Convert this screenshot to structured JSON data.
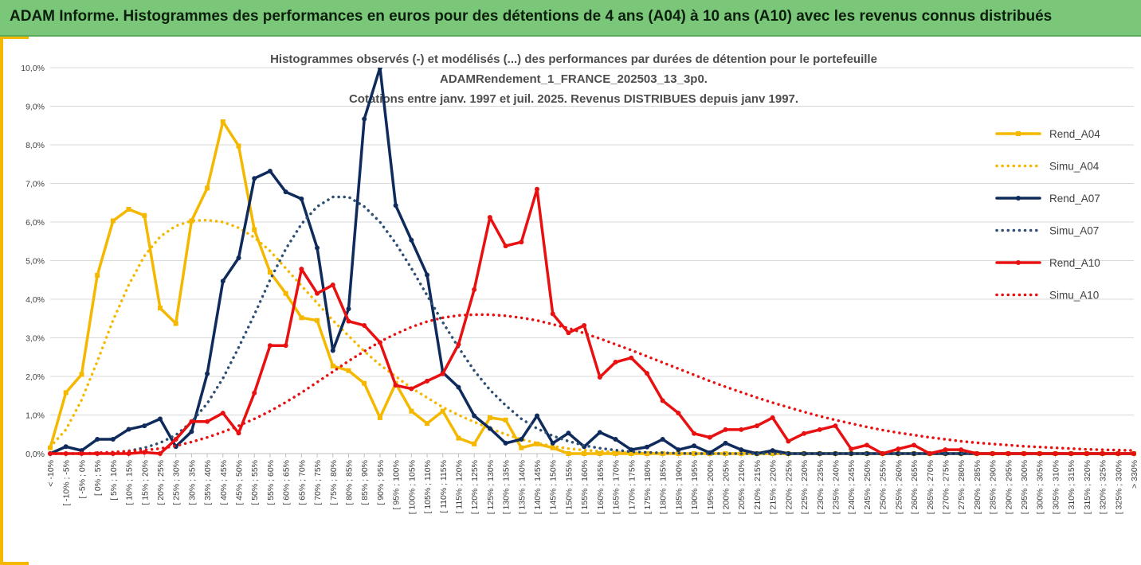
{
  "page": {
    "banner_title": "ADAM Informe. Histogrammes des performances en euros pour des détentions de 4 ans (A04) à 10 ans (A10) avec les revenus connus distribués"
  },
  "chart_data": {
    "type": "line",
    "title_lines": [
      "Histogrammes observés (-) et modélisés (...) des performances par durées de détention pour le portefeuille",
      "ADAMRendement_1_FRANCE_202503_13_3p0.",
      "Cotations entre janv. 1997 et juil. 2025. Revenus DISTRIBUES depuis janv 1997."
    ],
    "ylim": [
      0,
      10
    ],
    "yticks": [
      "0,0%",
      "1,0%",
      "2,0%",
      "3,0%",
      "4,0%",
      "5,0%",
      "6,0%",
      "7,0%",
      "8,0%",
      "9,0%",
      "10,0%"
    ],
    "grid": true,
    "legend_position": "right",
    "categories": [
      "< -10%",
      "[ -10% ; -5%",
      "[ -5% ; 0%",
      "[ 0% ; 5%",
      "[ 5% ; 10%",
      "[ 10% ; 15%",
      "[ 15% ; 20%",
      "[ 20% ; 25%",
      "[ 25% ; 30%",
      "[ 30% ; 35%",
      "[ 35% ; 40%",
      "[ 40% ; 45%",
      "[ 45% ; 50%",
      "[ 50% ; 55%",
      "[ 55% ; 60%",
      "[ 60% ; 65%",
      "[ 65% ; 70%",
      "[ 70% ; 75%",
      "[ 75% ; 80%",
      "[ 80% ; 85%",
      "[ 85% ; 90%",
      "[ 90% ; 95%",
      "[ 95% ; 100%",
      "[ 100% ; 105%",
      "[ 105% ; 110%",
      "[ 110% ; 115%",
      "[ 115% ; 120%",
      "[ 120% ; 125%",
      "[ 125% ; 130%",
      "[ 130% ; 135%",
      "[ 135% ; 140%",
      "[ 140% ; 145%",
      "[ 145% ; 150%",
      "[ 150% ; 155%",
      "[ 155% ; 160%",
      "[ 160% ; 165%",
      "[ 165% ; 170%",
      "[ 170% ; 175%",
      "[ 175% ; 180%",
      "[ 180% ; 185%",
      "[ 185% ; 190%",
      "[ 190% ; 195%",
      "[ 195% ; 200%",
      "[ 200% ; 205%",
      "[ 205% ; 210%",
      "[ 210% ; 215%",
      "[ 215% ; 220%",
      "[ 220% ; 225%",
      "[ 225% ; 230%",
      "[ 230% ; 235%",
      "[ 235% ; 240%",
      "[ 240% ; 245%",
      "[ 245% ; 250%",
      "[ 250% ; 255%",
      "[ 255% ; 260%",
      "[ 260% ; 265%",
      "[ 265% ; 270%",
      "[ 270% ; 275%",
      "[ 275% ; 280%",
      "[ 280% ; 285%",
      "[ 285% ; 290%",
      "[ 290% ; 295%",
      "[ 295% ; 300%",
      "[ 300% ; 305%",
      "[ 305% ; 310%",
      "[ 310% ; 315%",
      "[ 315% ; 320%",
      "[ 320% ; 325%",
      "[ 325% ; 330%",
      "> 330%"
    ],
    "series": [
      {
        "name": "Rend_A04",
        "color": "#f5b800",
        "style": "solid",
        "marker": "square",
        "values": [
          0.15,
          1.58,
          2.05,
          4.62,
          6.03,
          6.33,
          6.17,
          3.77,
          3.37,
          6.03,
          6.88,
          8.6,
          7.97,
          5.8,
          4.7,
          4.15,
          3.52,
          3.45,
          2.27,
          2.15,
          1.82,
          0.93,
          1.82,
          1.1,
          0.78,
          1.1,
          0.4,
          0.25,
          0.93,
          0.87,
          0.15,
          0.25,
          0.15,
          0,
          0,
          0,
          0,
          0,
          0,
          0,
          0,
          0,
          0,
          0,
          0,
          0,
          0,
          0,
          0,
          0,
          0,
          0,
          0,
          0,
          0,
          0,
          0,
          0,
          0,
          0,
          0,
          0,
          0,
          0,
          0,
          0,
          0,
          0,
          0,
          0
        ]
      },
      {
        "name": "Simu_A04",
        "color": "#f5b800",
        "style": "dotted",
        "values": [
          0.17,
          0.62,
          1.39,
          2.39,
          3.45,
          4.37,
          5.12,
          5.62,
          5.9,
          6.03,
          6.05,
          6.0,
          5.85,
          5.6,
          5.25,
          4.8,
          4.35,
          3.9,
          3.45,
          3.05,
          2.65,
          2.3,
          2.0,
          1.7,
          1.45,
          1.2,
          1.0,
          0.82,
          0.65,
          0.5,
          0.37,
          0.27,
          0.19,
          0.13,
          0.09,
          0.06,
          0.04,
          0.02,
          0.01,
          0,
          0,
          0,
          0,
          0,
          0,
          0,
          0,
          0,
          0,
          0,
          0,
          0,
          0,
          0,
          0,
          0,
          0,
          0,
          0,
          0,
          0,
          0,
          0,
          0,
          0,
          0,
          0,
          0,
          0,
          0
        ]
      },
      {
        "name": "Rend_A07",
        "color": "#0f2b5c",
        "style": "solid",
        "marker": "circle",
        "values": [
          0,
          0.18,
          0.08,
          0.37,
          0.37,
          0.63,
          0.72,
          0.9,
          0.18,
          0.57,
          2.07,
          4.47,
          5.07,
          7.13,
          7.32,
          6.78,
          6.6,
          5.33,
          2.67,
          3.75,
          8.67,
          10.1,
          6.43,
          5.53,
          4.63,
          2.1,
          1.72,
          0.98,
          0.65,
          0.27,
          0.37,
          0.98,
          0.27,
          0.53,
          0.18,
          0.55,
          0.37,
          0.1,
          0.17,
          0.37,
          0.1,
          0.2,
          0.02,
          0.27,
          0.1,
          0,
          0.08,
          0,
          0,
          0,
          0,
          0,
          0,
          0,
          0,
          0,
          0,
          0,
          0,
          0,
          0,
          0,
          0,
          0,
          0,
          0,
          0,
          0,
          0,
          0
        ]
      },
      {
        "name": "Simu_A07",
        "color": "#2e4f73",
        "style": "dotted",
        "values": [
          0,
          0,
          0,
          0,
          0.02,
          0.07,
          0.15,
          0.28,
          0.48,
          0.82,
          1.3,
          1.95,
          2.75,
          3.6,
          4.5,
          5.3,
          5.95,
          6.4,
          6.65,
          6.65,
          6.4,
          6.0,
          5.45,
          4.8,
          4.1,
          3.4,
          2.75,
          2.15,
          1.65,
          1.25,
          0.9,
          0.65,
          0.46,
          0.32,
          0.21,
          0.14,
          0.09,
          0.05,
          0.03,
          0.02,
          0.01,
          0,
          0,
          0,
          0,
          0,
          0,
          0,
          0,
          0,
          0,
          0,
          0,
          0,
          0,
          0,
          0,
          0,
          0,
          0,
          0,
          0,
          0,
          0,
          0,
          0,
          0,
          0,
          0,
          0
        ]
      },
      {
        "name": "Rend_A10",
        "color": "#e81010",
        "style": "solid",
        "marker": "circle",
        "values": [
          0,
          0,
          0,
          0,
          0,
          0,
          0.03,
          0,
          0.37,
          0.83,
          0.83,
          1.05,
          0.53,
          1.57,
          2.8,
          2.8,
          4.78,
          4.15,
          4.37,
          3.43,
          3.32,
          2.88,
          1.77,
          1.68,
          1.88,
          2.07,
          2.83,
          4.25,
          6.12,
          5.38,
          5.48,
          6.85,
          3.62,
          3.13,
          3.32,
          1.98,
          2.37,
          2.48,
          2.08,
          1.37,
          1.05,
          0.52,
          0.42,
          0.62,
          0.62,
          0.72,
          0.93,
          0.32,
          0.52,
          0.62,
          0.72,
          0.12,
          0.22,
          0,
          0.12,
          0.22,
          0,
          0.1,
          0.1,
          0,
          0,
          0,
          0,
          0,
          0,
          0,
          0,
          0,
          0,
          0
        ]
      },
      {
        "name": "Simu_A10",
        "color": "#e81010",
        "style": "dotted",
        "values": [
          0,
          0,
          0,
          0.02,
          0.04,
          0.06,
          0.09,
          0.13,
          0.2,
          0.3,
          0.42,
          0.56,
          0.72,
          0.9,
          1.1,
          1.33,
          1.58,
          1.85,
          2.12,
          2.4,
          2.65,
          2.9,
          3.1,
          3.28,
          3.42,
          3.52,
          3.58,
          3.6,
          3.6,
          3.57,
          3.52,
          3.45,
          3.35,
          3.25,
          3.12,
          2.98,
          2.83,
          2.68,
          2.52,
          2.36,
          2.2,
          2.04,
          1.88,
          1.73,
          1.59,
          1.45,
          1.32,
          1.2,
          1.08,
          0.97,
          0.87,
          0.78,
          0.69,
          0.61,
          0.54,
          0.48,
          0.42,
          0.37,
          0.32,
          0.28,
          0.25,
          0.22,
          0.19,
          0.17,
          0.15,
          0.13,
          0.11,
          0.1,
          0.09,
          0.08
        ]
      }
    ]
  }
}
